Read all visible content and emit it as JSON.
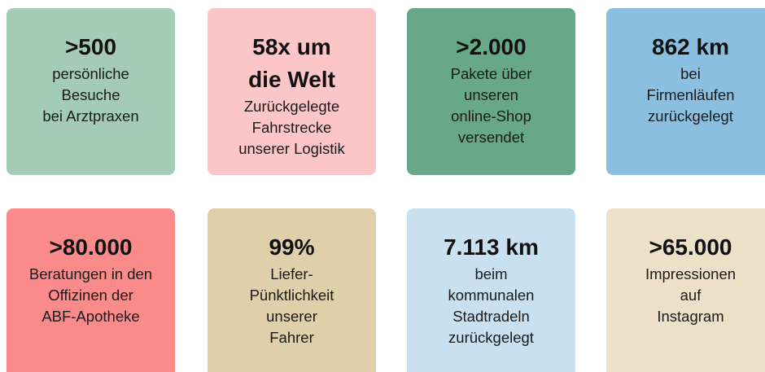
{
  "tiles": [
    {
      "color": "#a3cbb8",
      "headline": [
        ">500"
      ],
      "lines": [
        "persönliche",
        "Besuche",
        "bei Arztpraxen"
      ]
    },
    {
      "color": "#fcc5c8",
      "headline": [
        "58x um",
        "die Welt"
      ],
      "lines": [
        "Zurückgelegte",
        "Fahrstrecke",
        "unserer Logistik"
      ]
    },
    {
      "color": "#66a887",
      "headline": [
        ">2.000"
      ],
      "lines": [
        "Pakete über",
        "unseren",
        "online-Shop",
        "versendet"
      ]
    },
    {
      "color": "#8bbfe0",
      "headline": [
        "862 km"
      ],
      "lines": [
        "bei",
        "Firmenläufen",
        "zurückgelegt"
      ]
    },
    {
      "color": "#fb8b8b",
      "headline": [
        ">80.000"
      ],
      "lines": [
        "Beratungen in den",
        "Offizinen der",
        "ABF-Apotheke"
      ]
    },
    {
      "color": "#dfcfaa",
      "headline": [
        "99%"
      ],
      "lines": [
        "Liefer-",
        "Pünktlichkeit",
        "unserer",
        "Fahrer"
      ]
    },
    {
      "color": "#c8e0ef",
      "headline": [
        "7.113 km"
      ],
      "lines": [
        "beim",
        "kommunalen",
        "Stadtradeln",
        "zurückgelegt"
      ]
    },
    {
      "color": "#ede0c8",
      "headline": [
        ">65.000"
      ],
      "lines": [
        "Impressionen",
        "auf",
        "Instagram"
      ]
    }
  ]
}
